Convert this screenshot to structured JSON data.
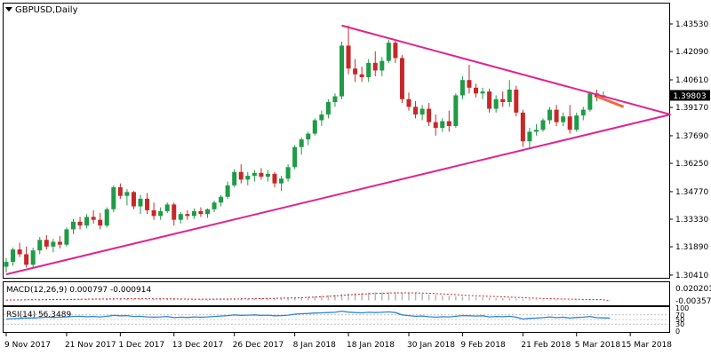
{
  "colors": {
    "background": "#ffffff",
    "frame": "#000000",
    "bull": "#1f9b46",
    "bear": "#c62828",
    "trendline": "#e0248f",
    "breakout": "#f06a3a",
    "macd_hist": "#b8b8b8",
    "macd_signal": "#cc2222",
    "rsi": "#2b86d9",
    "price_tag_bg": "#000000",
    "price_tag_fg": "#ffffff"
  },
  "chart_data": [
    {
      "type": "candlestick",
      "title": "GBPUSD,Daily",
      "title_icon": "triangle-down-icon",
      "current_price": "1.39803",
      "y_ticks": [
        "1.43530",
        "1.42090",
        "1.40610",
        "1.39170",
        "1.37690",
        "1.36250",
        "1.34770",
        "1.33330",
        "1.31890",
        "1.30410"
      ],
      "ylim": [
        1.3027,
        1.4404
      ],
      "x_ticks": [
        "9 Nov 2017",
        "21 Nov 2017",
        "1 Dec 2017",
        "13 Dec 2017",
        "26 Dec 2017",
        "8 Jan 2018",
        "18 Jan 2018",
        "30 Jan 2018",
        "9 Feb 2018",
        "21 Feb 2018",
        "5 Mar 2018",
        "15 Mar 2018"
      ],
      "x_tick_index": [
        0,
        9,
        17,
        25,
        34,
        43,
        51,
        60,
        68,
        77,
        85,
        93
      ],
      "candles": [
        {
          "o": 1.3085,
          "h": 1.313,
          "l": 1.3055,
          "c": 1.311
        },
        {
          "o": 1.311,
          "h": 1.3185,
          "l": 1.309,
          "c": 1.3175
        },
        {
          "o": 1.3175,
          "h": 1.321,
          "l": 1.3135,
          "c": 1.315
        },
        {
          "o": 1.315,
          "h": 1.319,
          "l": 1.308,
          "c": 1.3095
        },
        {
          "o": 1.3095,
          "h": 1.3185,
          "l": 1.308,
          "c": 1.317
        },
        {
          "o": 1.317,
          "h": 1.324,
          "l": 1.315,
          "c": 1.3225
        },
        {
          "o": 1.3225,
          "h": 1.325,
          "l": 1.3175,
          "c": 1.319
        },
        {
          "o": 1.319,
          "h": 1.323,
          "l": 1.316,
          "c": 1.3215
        },
        {
          "o": 1.3215,
          "h": 1.3245,
          "l": 1.318,
          "c": 1.32
        },
        {
          "o": 1.32,
          "h": 1.329,
          "l": 1.319,
          "c": 1.328
        },
        {
          "o": 1.328,
          "h": 1.3335,
          "l": 1.3255,
          "c": 1.332
        },
        {
          "o": 1.332,
          "h": 1.3345,
          "l": 1.328,
          "c": 1.33
        },
        {
          "o": 1.33,
          "h": 1.336,
          "l": 1.3285,
          "c": 1.3345
        },
        {
          "o": 1.3345,
          "h": 1.338,
          "l": 1.331,
          "c": 1.333
        },
        {
          "o": 1.333,
          "h": 1.3365,
          "l": 1.328,
          "c": 1.33
        },
        {
          "o": 1.33,
          "h": 1.3395,
          "l": 1.329,
          "c": 1.3385
        },
        {
          "o": 1.3385,
          "h": 1.351,
          "l": 1.337,
          "c": 1.35
        },
        {
          "o": 1.35,
          "h": 1.352,
          "l": 1.344,
          "c": 1.3455
        },
        {
          "o": 1.3455,
          "h": 1.349,
          "l": 1.3405,
          "c": 1.3475
        },
        {
          "o": 1.3475,
          "h": 1.348,
          "l": 1.3385,
          "c": 1.34
        },
        {
          "o": 1.34,
          "h": 1.346,
          "l": 1.336,
          "c": 1.344
        },
        {
          "o": 1.344,
          "h": 1.347,
          "l": 1.336,
          "c": 1.338
        },
        {
          "o": 1.338,
          "h": 1.342,
          "l": 1.333,
          "c": 1.335
        },
        {
          "o": 1.335,
          "h": 1.3395,
          "l": 1.333,
          "c": 1.3375
        },
        {
          "o": 1.3375,
          "h": 1.342,
          "l": 1.3365,
          "c": 1.341
        },
        {
          "o": 1.341,
          "h": 1.342,
          "l": 1.33,
          "c": 1.333
        },
        {
          "o": 1.333,
          "h": 1.337,
          "l": 1.331,
          "c": 1.336
        },
        {
          "o": 1.336,
          "h": 1.338,
          "l": 1.333,
          "c": 1.335
        },
        {
          "o": 1.335,
          "h": 1.339,
          "l": 1.3335,
          "c": 1.3375
        },
        {
          "o": 1.3375,
          "h": 1.3395,
          "l": 1.3345,
          "c": 1.336
        },
        {
          "o": 1.336,
          "h": 1.339,
          "l": 1.334,
          "c": 1.3385
        },
        {
          "o": 1.3385,
          "h": 1.343,
          "l": 1.337,
          "c": 1.342
        },
        {
          "o": 1.342,
          "h": 1.346,
          "l": 1.34,
          "c": 1.345
        },
        {
          "o": 1.345,
          "h": 1.353,
          "l": 1.344,
          "c": 1.351
        },
        {
          "o": 1.351,
          "h": 1.3595,
          "l": 1.35,
          "c": 1.358
        },
        {
          "o": 1.358,
          "h": 1.362,
          "l": 1.352,
          "c": 1.354
        },
        {
          "o": 1.354,
          "h": 1.358,
          "l": 1.351,
          "c": 1.356
        },
        {
          "o": 1.356,
          "h": 1.359,
          "l": 1.353,
          "c": 1.3575
        },
        {
          "o": 1.3575,
          "h": 1.36,
          "l": 1.354,
          "c": 1.3555
        },
        {
          "o": 1.3555,
          "h": 1.359,
          "l": 1.353,
          "c": 1.357
        },
        {
          "o": 1.357,
          "h": 1.358,
          "l": 1.35,
          "c": 1.352
        },
        {
          "o": 1.352,
          "h": 1.356,
          "l": 1.348,
          "c": 1.3545
        },
        {
          "o": 1.3545,
          "h": 1.362,
          "l": 1.353,
          "c": 1.3605
        },
        {
          "o": 1.3605,
          "h": 1.372,
          "l": 1.3595,
          "c": 1.371
        },
        {
          "o": 1.371,
          "h": 1.376,
          "l": 1.367,
          "c": 1.375
        },
        {
          "o": 1.375,
          "h": 1.379,
          "l": 1.372,
          "c": 1.378
        },
        {
          "o": 1.378,
          "h": 1.386,
          "l": 1.377,
          "c": 1.385
        },
        {
          "o": 1.385,
          "h": 1.39,
          "l": 1.382,
          "c": 1.388
        },
        {
          "o": 1.388,
          "h": 1.396,
          "l": 1.386,
          "c": 1.3945
        },
        {
          "o": 1.3945,
          "h": 1.399,
          "l": 1.392,
          "c": 1.3975
        },
        {
          "o": 1.3975,
          "h": 1.426,
          "l": 1.396,
          "c": 1.424
        },
        {
          "o": 1.424,
          "h": 1.4345,
          "l": 1.409,
          "c": 1.412
        },
        {
          "o": 1.412,
          "h": 1.417,
          "l": 1.405,
          "c": 1.409
        },
        {
          "o": 1.409,
          "h": 1.413,
          "l": 1.405,
          "c": 1.4075
        },
        {
          "o": 1.4075,
          "h": 1.417,
          "l": 1.405,
          "c": 1.415
        },
        {
          "o": 1.415,
          "h": 1.421,
          "l": 1.408,
          "c": 1.411
        },
        {
          "o": 1.411,
          "h": 1.418,
          "l": 1.408,
          "c": 1.416
        },
        {
          "o": 1.416,
          "h": 1.427,
          "l": 1.415,
          "c": 1.4255
        },
        {
          "o": 1.4255,
          "h": 1.427,
          "l": 1.415,
          "c": 1.4175
        },
        {
          "o": 1.4175,
          "h": 1.419,
          "l": 1.394,
          "c": 1.396
        },
        {
          "o": 1.396,
          "h": 1.3995,
          "l": 1.39,
          "c": 1.392
        },
        {
          "o": 1.392,
          "h": 1.395,
          "l": 1.386,
          "c": 1.388
        },
        {
          "o": 1.388,
          "h": 1.393,
          "l": 1.385,
          "c": 1.391
        },
        {
          "o": 1.391,
          "h": 1.394,
          "l": 1.382,
          "c": 1.384
        },
        {
          "o": 1.384,
          "h": 1.388,
          "l": 1.377,
          "c": 1.381
        },
        {
          "o": 1.381,
          "h": 1.386,
          "l": 1.379,
          "c": 1.3845
        },
        {
          "o": 1.3845,
          "h": 1.39,
          "l": 1.379,
          "c": 1.382
        },
        {
          "o": 1.382,
          "h": 1.399,
          "l": 1.381,
          "c": 1.398
        },
        {
          "o": 1.398,
          "h": 1.408,
          "l": 1.396,
          "c": 1.406
        },
        {
          "o": 1.406,
          "h": 1.414,
          "l": 1.399,
          "c": 1.402
        },
        {
          "o": 1.402,
          "h": 1.404,
          "l": 1.397,
          "c": 1.399
        },
        {
          "o": 1.399,
          "h": 1.402,
          "l": 1.396,
          "c": 1.4
        },
        {
          "o": 1.4,
          "h": 1.4015,
          "l": 1.389,
          "c": 1.391
        },
        {
          "o": 1.391,
          "h": 1.398,
          "l": 1.389,
          "c": 1.396
        },
        {
          "o": 1.396,
          "h": 1.4,
          "l": 1.392,
          "c": 1.3945
        },
        {
          "o": 1.3945,
          "h": 1.406,
          "l": 1.392,
          "c": 1.401
        },
        {
          "o": 1.401,
          "h": 1.403,
          "l": 1.387,
          "c": 1.389
        },
        {
          "o": 1.389,
          "h": 1.3905,
          "l": 1.371,
          "c": 1.374
        },
        {
          "o": 1.374,
          "h": 1.381,
          "l": 1.37,
          "c": 1.379
        },
        {
          "o": 1.379,
          "h": 1.383,
          "l": 1.377,
          "c": 1.38
        },
        {
          "o": 1.38,
          "h": 1.386,
          "l": 1.379,
          "c": 1.385
        },
        {
          "o": 1.385,
          "h": 1.392,
          "l": 1.383,
          "c": 1.3905
        },
        {
          "o": 1.3905,
          "h": 1.393,
          "l": 1.382,
          "c": 1.384
        },
        {
          "o": 1.384,
          "h": 1.389,
          "l": 1.382,
          "c": 1.387
        },
        {
          "o": 1.387,
          "h": 1.393,
          "l": 1.378,
          "c": 1.38
        },
        {
          "o": 1.38,
          "h": 1.389,
          "l": 1.379,
          "c": 1.3875
        },
        {
          "o": 1.3875,
          "h": 1.392,
          "l": 1.385,
          "c": 1.3905
        },
        {
          "o": 1.3905,
          "h": 1.4,
          "l": 1.3895,
          "c": 1.399
        },
        {
          "o": 1.399,
          "h": 1.401,
          "l": 1.395,
          "c": 1.397
        },
        {
          "o": 1.397,
          "h": 1.4,
          "l": 1.396,
          "c": 1.398
        }
      ],
      "trendline_upper": [
        [
          50,
          1.4345
        ],
        [
          99,
          1.388
        ]
      ],
      "trendline_lower": [
        [
          0,
          1.3045
        ],
        [
          99,
          1.388
        ]
      ],
      "breakout_segment": [
        [
          88,
          1.3975
        ],
        [
          92,
          1.392
        ]
      ]
    },
    {
      "type": "histogram",
      "title": "MACD(12,26,9) 0.000797 -0.000914",
      "y_ticks": [
        "0.020201",
        "-0.003573"
      ],
      "ylim": [
        -0.005,
        0.0215
      ],
      "histogram_values": [
        0.0005,
        0.0007,
        0.0009,
        0.001,
        0.0011,
        0.0012,
        0.0013,
        0.0013,
        0.0014,
        0.0015,
        0.0016,
        0.0017,
        0.0018,
        0.0019,
        0.0019,
        0.002,
        0.0022,
        0.0023,
        0.0023,
        0.0022,
        0.0021,
        0.002,
        0.0019,
        0.0018,
        0.0017,
        0.0016,
        0.0015,
        0.0014,
        0.0013,
        0.0013,
        0.0014,
        0.0015,
        0.0016,
        0.0018,
        0.002,
        0.0022,
        0.0024,
        0.0026,
        0.0028,
        0.003,
        0.0031,
        0.0032,
        0.0034,
        0.0037,
        0.0041,
        0.0046,
        0.0052,
        0.0058,
        0.0064,
        0.007,
        0.0078,
        0.0085,
        0.009,
        0.0094,
        0.0097,
        0.0099,
        0.01,
        0.0101,
        0.01,
        0.0098,
        0.0094,
        0.0089,
        0.0082,
        0.0075,
        0.0068,
        0.0061,
        0.0056,
        0.0051,
        0.0048,
        0.0045,
        0.0042,
        0.0039,
        0.0035,
        0.0031,
        0.0028,
        0.0025,
        0.0021,
        0.0017,
        0.0014,
        0.0012,
        0.001,
        0.0009,
        0.0008,
        0.0007,
        0.0006,
        0.0006,
        0.0006,
        0.0007,
        0.0008,
        0.0008,
        0.0008
      ],
      "signal_values": [
        0.0004,
        0.0005,
        0.0006,
        0.0007,
        0.0008,
        0.0009,
        0.001,
        0.0011,
        0.0012,
        0.0012,
        0.0013,
        0.0014,
        0.0015,
        0.0016,
        0.0017,
        0.0017,
        0.0018,
        0.0019,
        0.002,
        0.0021,
        0.0021,
        0.0021,
        0.002,
        0.002,
        0.0019,
        0.0018,
        0.0017,
        0.0016,
        0.0015,
        0.0015,
        0.0015,
        0.0015,
        0.0016,
        0.0016,
        0.0017,
        0.0018,
        0.0019,
        0.0021,
        0.0022,
        0.0024,
        0.0025,
        0.0027,
        0.0029,
        0.0031,
        0.0034,
        0.0037,
        0.0041,
        0.0046,
        0.0051,
        0.0056,
        0.0062,
        0.0068,
        0.0073,
        0.0078,
        0.0082,
        0.0086,
        0.0089,
        0.0091,
        0.0093,
        0.0094,
        0.0094,
        0.0093,
        0.0091,
        0.0088,
        0.0084,
        0.008,
        0.0075,
        0.0071,
        0.0066,
        0.0062,
        0.0058,
        0.0055,
        0.0051,
        0.0048,
        0.0044,
        0.0041,
        0.0037,
        0.0034,
        0.003,
        0.0027,
        0.0024,
        0.0022,
        0.0019,
        0.0017,
        0.0015,
        0.0014,
        0.0012,
        0.0011,
        0.001,
        0.0009,
        -0.0009
      ]
    },
    {
      "type": "line",
      "title": "RSI(14) 56.3489",
      "y_ticks": [
        "100",
        "70",
        "50",
        "30",
        "0"
      ],
      "ylim": [
        0,
        100
      ],
      "levels": [
        70,
        50,
        30
      ],
      "values": [
        52,
        54,
        55,
        57,
        56,
        58,
        60,
        59,
        60,
        61,
        63,
        64,
        62,
        63,
        61,
        64,
        68,
        66,
        67,
        63,
        64,
        61,
        60,
        61,
        63,
        58,
        60,
        59,
        61,
        60,
        61,
        63,
        65,
        67,
        70,
        68,
        69,
        70,
        68,
        69,
        66,
        67,
        69,
        73,
        75,
        76,
        78,
        79,
        80,
        81,
        86,
        82,
        80,
        79,
        81,
        80,
        81,
        83,
        80,
        70,
        67,
        64,
        65,
        62,
        60,
        62,
        61,
        64,
        67,
        66,
        65,
        66,
        61,
        63,
        62,
        64,
        60,
        52,
        55,
        56,
        58,
        61,
        58,
        60,
        56,
        59,
        60,
        63,
        58,
        57,
        56
      ]
    }
  ]
}
